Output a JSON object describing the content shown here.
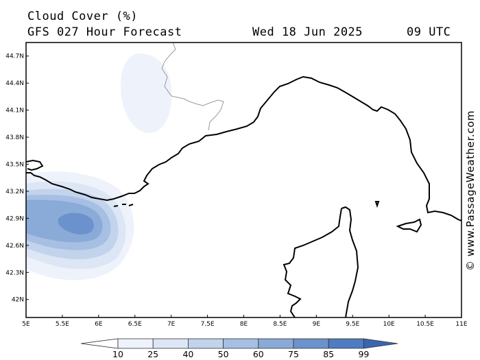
{
  "header": {
    "title": "Cloud Cover (%)",
    "model": "GFS 027 Hour Forecast",
    "date": "Wed 18 Jun 2025",
    "time": "09 UTC"
  },
  "credit": "© www.PassageWeather.com",
  "axes": {
    "lon_labels": [
      "5E",
      "5.5E",
      "6E",
      "6.5E",
      "7E",
      "7.5E",
      "8E",
      "8.5E",
      "9E",
      "9.5E",
      "10E",
      "10.5E",
      "11E"
    ],
    "lon_values": [
      5,
      5.5,
      6,
      6.5,
      7,
      7.5,
      8,
      8.5,
      9,
      9.5,
      10,
      10.5,
      11
    ],
    "lat_labels": [
      "44.7N",
      "44.4N",
      "44.1N",
      "43.8N",
      "43.5N",
      "43.2N",
      "42.9N",
      "42.6N",
      "42.3N",
      "42N"
    ],
    "lat_values": [
      44.7,
      44.4,
      44.1,
      43.8,
      43.5,
      43.2,
      42.9,
      42.6,
      42.3,
      42.0
    ],
    "lon_range": [
      5,
      11
    ],
    "lat_range": [
      41.8,
      44.85
    ]
  },
  "colorbar": {
    "labels": [
      "10",
      "25",
      "40",
      "50",
      "60",
      "75",
      "85",
      "99"
    ],
    "colors": [
      "#ffffff",
      "#eef2fa",
      "#dce6f4",
      "#c2d3ec",
      "#a6bfe3",
      "#8aaad8",
      "#6b92cc",
      "#4f7bc0",
      "#3a66b0"
    ]
  }
}
